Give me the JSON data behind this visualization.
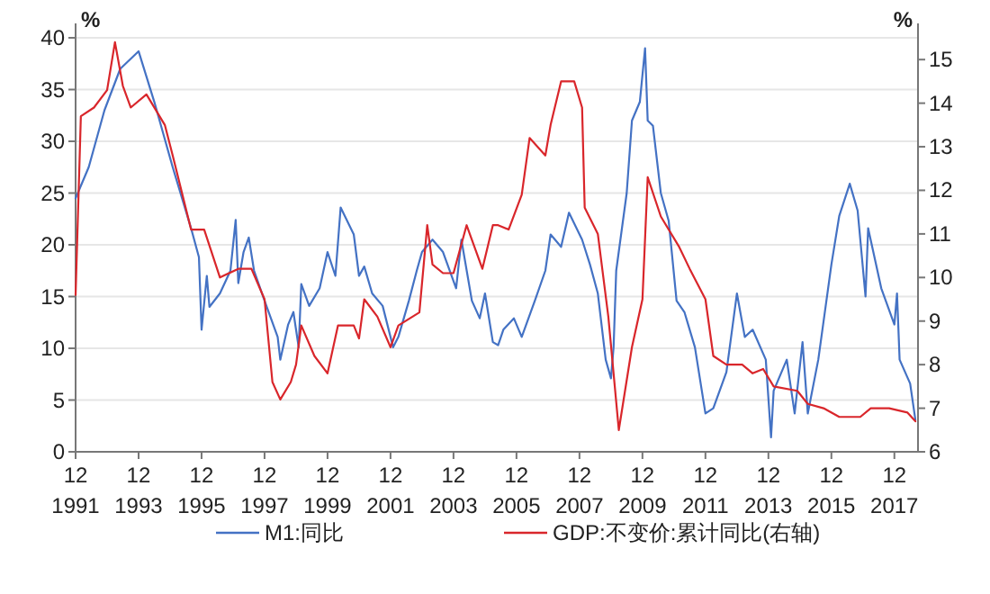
{
  "chart_data": {
    "type": "line",
    "ylabel": "%",
    "y2label": "%",
    "xlim": [
      "1991-12",
      "2018-09"
    ],
    "ylim": [
      0,
      40
    ],
    "y2lim": [
      6,
      15.5
    ],
    "xticks": [
      {
        "value": "1991-12",
        "label": "12 1991"
      },
      {
        "value": "1993-12",
        "label": "12 1993"
      },
      {
        "value": "1995-12",
        "label": "12 1995"
      },
      {
        "value": "1997-12",
        "label": "12 1997"
      },
      {
        "value": "1999-12",
        "label": "12 1999"
      },
      {
        "value": "2001-12",
        "label": "12 2001"
      },
      {
        "value": "2003-12",
        "label": "12 2003"
      },
      {
        "value": "2005-12",
        "label": "12 2005"
      },
      {
        "value": "2007-12",
        "label": "12 2007"
      },
      {
        "value": "2009-12",
        "label": "12 2009"
      },
      {
        "value": "2011-12",
        "label": "12 2011"
      },
      {
        "value": "2013-12",
        "label": "12 2013"
      },
      {
        "value": "2015-12",
        "label": "12 2015"
      },
      {
        "value": "2017-12",
        "label": "12 2017"
      }
    ],
    "yticks": [
      0,
      5,
      10,
      15,
      20,
      25,
      30,
      35,
      40
    ],
    "y2ticks": [
      6,
      7,
      8,
      9,
      10,
      11,
      12,
      13,
      14,
      15
    ],
    "grid": "y",
    "legend": "bottom",
    "series": [
      {
        "name": "M1:同比",
        "color": "#4472c4",
        "x": [
          "1991-12",
          "1992-05",
          "1992-11",
          "1993-05",
          "1993-12",
          "1994-06",
          "1995-01",
          "1995-08",
          "1995-11",
          "1995-12",
          "1996-02",
          "1996-03",
          "1996-07",
          "1996-11",
          "1997-01",
          "1997-02",
          "1997-04",
          "1997-06",
          "1997-08",
          "1997-12",
          "1998-05",
          "1998-06",
          "1998-09",
          "1998-11",
          "1999-01",
          "1999-02",
          "1999-05",
          "1999-09",
          "1999-12",
          "2000-03",
          "2000-05",
          "2000-10",
          "2000-12",
          "2001-02",
          "2001-05",
          "2001-09",
          "2001-12",
          "2002-01",
          "2002-03",
          "2002-07",
          "2002-10",
          "2002-12",
          "2003-04",
          "2003-08",
          "2004-01",
          "2004-03",
          "2004-07",
          "2004-10",
          "2004-12",
          "2005-03",
          "2005-05",
          "2005-07",
          "2005-11",
          "2006-02",
          "2006-07",
          "2006-11",
          "2007-01",
          "2007-05",
          "2007-08",
          "2008-01",
          "2008-04",
          "2008-07",
          "2008-10",
          "2008-12",
          "2009-01",
          "2009-02",
          "2009-06",
          "2009-08",
          "2009-11",
          "2010-01",
          "2010-02",
          "2010-04",
          "2010-07",
          "2010-10",
          "2011-01",
          "2011-04",
          "2011-08",
          "2011-12",
          "2012-03",
          "2012-08",
          "2012-12",
          "2013-03",
          "2013-06",
          "2013-11",
          "2014-01",
          "2014-02",
          "2014-07",
          "2014-10",
          "2015-01",
          "2015-03",
          "2015-07",
          "2015-12",
          "2016-03",
          "2016-07",
          "2016-10",
          "2017-01",
          "2017-02",
          "2017-07",
          "2017-12",
          "2018-01",
          "2018-02",
          "2018-06",
          "2018-08"
        ],
        "values": [
          24.5,
          27.5,
          33,
          37,
          38.7,
          33.8,
          27.5,
          21.6,
          18.8,
          11.8,
          17,
          14,
          15.3,
          17.5,
          22.4,
          16.3,
          19.3,
          20.7,
          17.5,
          14.6,
          11.1,
          8.9,
          12.3,
          13.5,
          10.1,
          16.2,
          14.1,
          15.8,
          19.3,
          17,
          23.6,
          21,
          17,
          17.9,
          15.3,
          14.1,
          11.1,
          10.1,
          11.1,
          14.6,
          17.5,
          19.3,
          20.5,
          19.3,
          15.8,
          20.5,
          14.6,
          12.9,
          15.3,
          10.6,
          10.3,
          11.8,
          12.9,
          11.1,
          14.6,
          17.5,
          21,
          19.8,
          23.1,
          20.5,
          18.1,
          15.3,
          8.9,
          7.1,
          10.1,
          17.5,
          25,
          32,
          33.8,
          39,
          32,
          31.5,
          25,
          22.3,
          14.6,
          13.5,
          10.1,
          3.7,
          4.2,
          7.7,
          15.3,
          11.1,
          11.8,
          8.9,
          1.4,
          5.9,
          8.9,
          3.7,
          10.6,
          3.7,
          8.9,
          18.1,
          22.8,
          25.9,
          23.3,
          15,
          21.6,
          15.8,
          12.3,
          15.3,
          8.9,
          6.6,
          3.1
        ]
      },
      {
        "name": "GDP:不变价:累计同比(右轴)",
        "color": "#d9262b",
        "axis": "y2",
        "x": [
          "1991-12",
          "1992-02",
          "1992-07",
          "1992-12",
          "1993-03",
          "1993-06",
          "1993-09",
          "1994-03",
          "1994-10",
          "1995-01",
          "1995-08",
          "1996-01",
          "1996-07",
          "1997-02",
          "1997-07",
          "1997-12",
          "1998-03",
          "1998-06",
          "1998-10",
          "1998-12",
          "1999-02",
          "1999-07",
          "1999-12",
          "2000-04",
          "2000-10",
          "2000-12",
          "2001-02",
          "2001-07",
          "2001-12",
          "2002-03",
          "2002-11",
          "2003-02",
          "2003-04",
          "2003-08",
          "2003-12",
          "2004-05",
          "2004-11",
          "2005-03",
          "2005-05",
          "2005-09",
          "2006-02",
          "2006-05",
          "2006-11",
          "2007-01",
          "2007-05",
          "2007-10",
          "2008-01",
          "2008-02",
          "2008-07",
          "2008-11",
          "2009-03",
          "2009-08",
          "2009-12",
          "2010-02",
          "2010-07",
          "2011-02",
          "2011-06",
          "2011-12",
          "2012-03",
          "2012-08",
          "2013-02",
          "2013-06",
          "2013-10",
          "2014-02",
          "2014-11",
          "2015-03",
          "2015-09",
          "2016-03",
          "2016-11",
          "2017-03",
          "2017-10",
          "2018-05",
          "2018-08"
        ],
        "values": [
          9.6,
          13.7,
          13.9,
          14.3,
          15.4,
          14.4,
          13.9,
          14.2,
          13.5,
          12.8,
          11.1,
          11.1,
          10.0,
          10.2,
          10.2,
          9.5,
          7.6,
          7.2,
          7.6,
          8.0,
          8.9,
          8.2,
          7.8,
          8.9,
          8.9,
          8.6,
          9.5,
          9.1,
          8.4,
          8.9,
          9.2,
          11.2,
          10.3,
          10.1,
          10.1,
          11.2,
          10.2,
          11.2,
          11.2,
          11.1,
          11.9,
          13.2,
          12.8,
          13.5,
          14.5,
          14.5,
          13.9,
          11.6,
          11.0,
          9.1,
          6.5,
          8.4,
          9.5,
          12.3,
          11.4,
          10.7,
          10.2,
          9.5,
          8.2,
          8.0,
          8.0,
          7.8,
          7.9,
          7.5,
          7.4,
          7.1,
          7.0,
          6.8,
          6.8,
          7.0,
          7.0,
          6.9,
          6.7
        ]
      }
    ]
  }
}
